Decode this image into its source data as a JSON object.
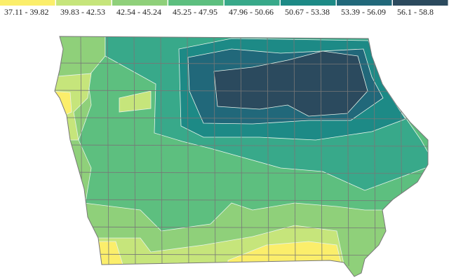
{
  "legend": {
    "items": [
      {
        "label": "37.11 - 39.82",
        "color": "#fbee6b"
      },
      {
        "label": "39.83 - 42.53",
        "color": "#c6e57b"
      },
      {
        "label": "42.54 - 45.24",
        "color": "#8fd07a"
      },
      {
        "label": "45.25 - 47.95",
        "color": "#5dbf7f"
      },
      {
        "label": "47.96 - 50.66",
        "color": "#38a98a"
      },
      {
        "label": "50.67 - 53.38",
        "color": "#1d8a86"
      },
      {
        "label": "53.39 - 56.09",
        "color": "#21687a"
      },
      {
        "label": "56.1 - 58.8",
        "color": "#2b4a5e"
      }
    ]
  }
}
